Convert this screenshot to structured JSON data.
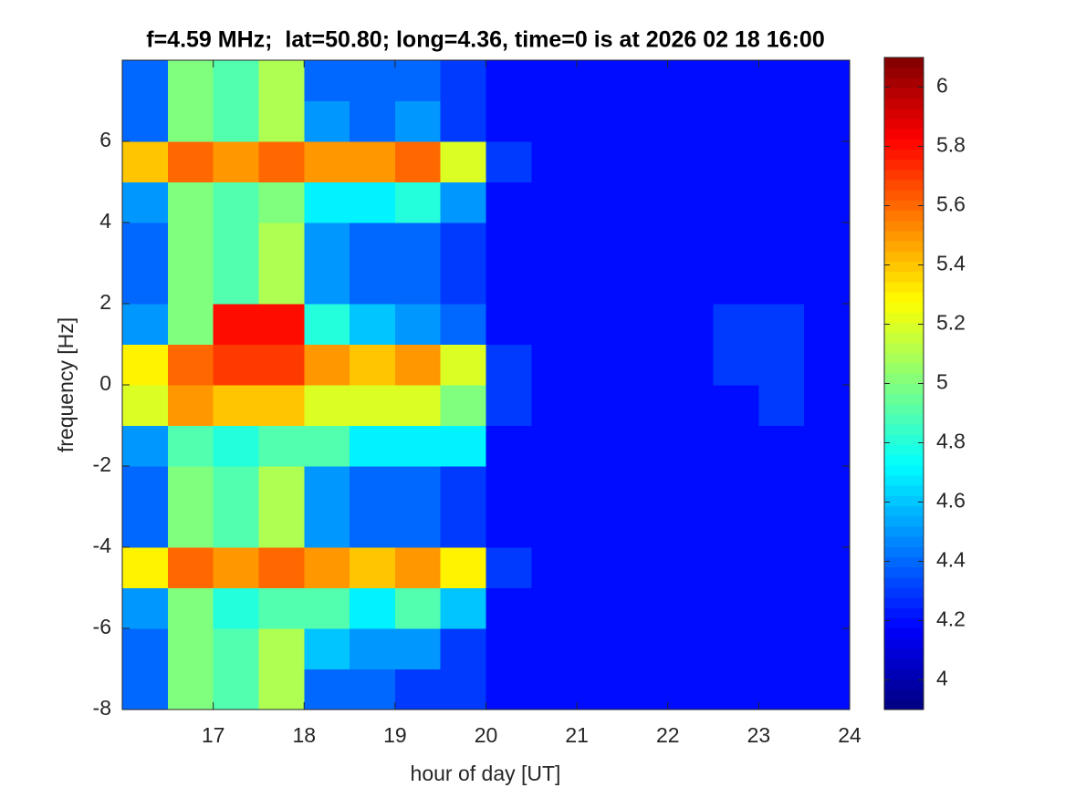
{
  "chart_data": {
    "type": "heatmap",
    "title": "f=4.59 MHz;  lat=50.80; long=4.36, time=0 is at 2026 02 18 16:00",
    "xlabel": "hour of day [UT]",
    "ylabel": "frequency [Hz]",
    "xlim": [
      16,
      24
    ],
    "xticks": [
      17,
      18,
      19,
      20,
      21,
      22,
      23,
      24
    ],
    "ylim": [
      -8,
      8
    ],
    "yticks": [
      -8,
      -6,
      -4,
      -2,
      0,
      2,
      4,
      6
    ],
    "colormap": "jet",
    "clim": [
      3.9,
      6.1
    ],
    "cticks": [
      4,
      4.2,
      4.4,
      4.6,
      4.8,
      5,
      5.2,
      5.4,
      5.6,
      5.8,
      6
    ],
    "x": [
      16.25,
      16.75,
      17.25,
      17.75,
      18.25,
      18.75,
      19.25,
      19.75,
      20.25,
      20.75,
      21.25,
      21.75,
      22.25,
      22.75,
      23.25,
      23.75
    ],
    "y": [
      -7.5,
      -6.5,
      -5.5,
      -4.5,
      -3.5,
      -2.5,
      -1.5,
      -0.5,
      0.5,
      1.5,
      2.5,
      3.5,
      4.5,
      5.5,
      6.5,
      7.5
    ],
    "z": [
      [
        4.4,
        5.0,
        4.9,
        5.1,
        4.4,
        4.4,
        4.3,
        4.3,
        4.2,
        4.2,
        4.2,
        4.2,
        4.2,
        4.2,
        4.2,
        4.2
      ],
      [
        4.4,
        5.0,
        4.9,
        5.1,
        4.6,
        4.5,
        4.5,
        4.3,
        4.2,
        4.2,
        4.2,
        4.2,
        4.2,
        4.2,
        4.2,
        4.2
      ],
      [
        4.5,
        5.0,
        4.8,
        4.9,
        4.9,
        4.7,
        4.9,
        4.6,
        4.2,
        4.2,
        4.2,
        4.2,
        4.2,
        4.2,
        4.2,
        4.2
      ],
      [
        5.3,
        5.6,
        5.5,
        5.6,
        5.5,
        5.4,
        5.5,
        5.3,
        4.3,
        4.2,
        4.2,
        4.2,
        4.2,
        4.2,
        4.2,
        4.2
      ],
      [
        4.4,
        5.0,
        4.9,
        5.1,
        4.5,
        4.4,
        4.4,
        4.3,
        4.2,
        4.2,
        4.2,
        4.2,
        4.2,
        4.2,
        4.2,
        4.2
      ],
      [
        4.4,
        5.0,
        4.9,
        5.1,
        4.5,
        4.4,
        4.4,
        4.3,
        4.2,
        4.2,
        4.2,
        4.2,
        4.2,
        4.2,
        4.2,
        4.2
      ],
      [
        4.5,
        4.9,
        4.8,
        4.9,
        4.9,
        4.7,
        4.7,
        4.7,
        4.2,
        4.2,
        4.2,
        4.2,
        4.2,
        4.2,
        4.2,
        4.2
      ],
      [
        5.2,
        5.5,
        5.4,
        5.4,
        5.2,
        5.2,
        5.2,
        5.0,
        4.3,
        4.2,
        4.2,
        4.2,
        4.2,
        4.2,
        4.3,
        4.2
      ],
      [
        5.3,
        5.6,
        5.7,
        5.7,
        5.5,
        5.4,
        5.5,
        5.2,
        4.3,
        4.2,
        4.2,
        4.2,
        4.2,
        4.3,
        4.3,
        4.2
      ],
      [
        4.5,
        5.0,
        5.8,
        5.8,
        4.8,
        4.6,
        4.5,
        4.4,
        4.2,
        4.2,
        4.2,
        4.2,
        4.2,
        4.3,
        4.3,
        4.2
      ],
      [
        4.4,
        5.0,
        4.9,
        5.1,
        4.5,
        4.4,
        4.4,
        4.3,
        4.2,
        4.2,
        4.2,
        4.2,
        4.2,
        4.2,
        4.2,
        4.2
      ],
      [
        4.4,
        5.0,
        4.9,
        5.1,
        4.5,
        4.4,
        4.4,
        4.3,
        4.2,
        4.2,
        4.2,
        4.2,
        4.2,
        4.2,
        4.2,
        4.2
      ],
      [
        4.5,
        5.0,
        4.9,
        5.0,
        4.7,
        4.7,
        4.8,
        4.5,
        4.2,
        4.2,
        4.2,
        4.2,
        4.2,
        4.2,
        4.2,
        4.2
      ],
      [
        5.4,
        5.6,
        5.5,
        5.6,
        5.5,
        5.5,
        5.6,
        5.2,
        4.3,
        4.2,
        4.2,
        4.2,
        4.2,
        4.2,
        4.2,
        4.2
      ],
      [
        4.4,
        5.0,
        4.9,
        5.1,
        4.5,
        4.4,
        4.5,
        4.3,
        4.2,
        4.2,
        4.2,
        4.2,
        4.2,
        4.2,
        4.2,
        4.2
      ],
      [
        4.4,
        5.0,
        4.9,
        5.1,
        4.4,
        4.4,
        4.4,
        4.3,
        4.2,
        4.2,
        4.2,
        4.2,
        4.2,
        4.2,
        4.2,
        4.2
      ]
    ]
  }
}
